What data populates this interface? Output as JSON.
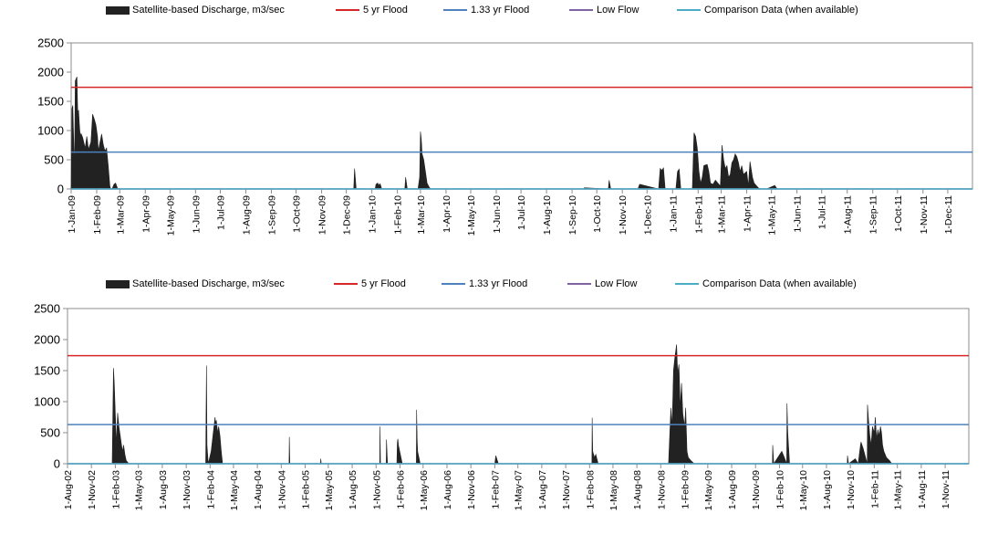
{
  "chart_data": [
    {
      "type": "area",
      "title": "",
      "xlabel": "",
      "ylabel": "",
      "ylim": [
        0,
        2500
      ],
      "yticks": [
        "0",
        "500",
        "1000",
        "1500",
        "2000",
        "2500"
      ],
      "x_range": [
        "2009-01-01",
        "2011-12-31"
      ],
      "x_tick_labels": [
        "1-Jan-09",
        "1-Feb-09",
        "1-Mar-09",
        "1-Apr-09",
        "1-May-09",
        "1-Jun-09",
        "1-Jul-09",
        "1-Aug-09",
        "1-Sep-09",
        "1-Oct-09",
        "1-Nov-09",
        "1-Dec-09",
        "1-Jan-10",
        "1-Feb-10",
        "1-Mar-10",
        "1-Apr-10",
        "1-May-10",
        "1-Jun-10",
        "1-Jul-10",
        "1-Aug-10",
        "1-Sep-10",
        "1-Oct-10",
        "1-Nov-10",
        "1-Dec-10",
        "1-Jan-11",
        "1-Feb-11",
        "1-Mar-11",
        "1-Apr-11",
        "1-May-11",
        "1-Jun-11",
        "1-Jul-11",
        "1-Aug-11",
        "1-Sep-11",
        "1-Oct-11",
        "1-Nov-11",
        "1-Dec-11"
      ],
      "legend": {
        "placement": "top",
        "entries": [
          {
            "label": "Satellite-based Discharge, m3/sec",
            "color": "#222222",
            "kind": "area"
          },
          {
            "label": "5 yr Flood",
            "color": "#d62728",
            "kind": "line"
          },
          {
            "label": "1.33 yr Flood",
            "color": "#4f81bd",
            "kind": "line"
          },
          {
            "label": "Low Flow",
            "color": "#8064a2",
            "kind": "line"
          },
          {
            "label": "Comparison Data (when available)",
            "color": "#4bacc6",
            "kind": "line"
          }
        ]
      },
      "reference_lines": {
        "five_yr_flood": 1740,
        "one_33_yr_flood": 630,
        "low_flow": 0
      },
      "series": [
        {
          "name": "Satellite-based Discharge, m3/sec",
          "x": [
            "2009-01-01",
            "2009-01-02",
            "2009-01-03",
            "2009-01-05",
            "2009-01-06",
            "2009-01-08",
            "2009-01-09",
            "2009-01-10",
            "2009-01-11",
            "2009-01-12",
            "2009-01-13",
            "2009-01-15",
            "2009-01-18",
            "2009-01-20",
            "2009-01-22",
            "2009-01-25",
            "2009-01-27",
            "2009-01-29",
            "2009-01-31",
            "2009-02-02",
            "2009-02-03",
            "2009-02-05",
            "2009-02-07",
            "2009-02-09",
            "2009-02-11",
            "2009-02-13",
            "2009-02-15",
            "2009-02-17",
            "2009-02-18",
            "2009-02-20",
            "2009-02-22",
            "2009-02-24",
            "2009-02-26",
            "2009-02-27",
            "2009-03-01",
            "2009-03-05",
            "2009-03-08",
            "2009-03-10",
            "2009-03-13",
            "2009-03-20",
            "2009-12-10",
            "2009-12-11",
            "2009-12-13",
            "2010-01-05",
            "2010-01-06",
            "2010-01-08",
            "2010-01-10",
            "2010-01-11",
            "2010-01-13",
            "2010-02-10",
            "2010-02-11",
            "2010-02-13",
            "2010-02-26",
            "2010-02-28",
            "2010-03-01",
            "2010-03-02",
            "2010-03-03",
            "2010-03-05",
            "2010-03-07",
            "2010-03-09",
            "2010-03-12",
            "2010-03-14",
            "2010-09-15",
            "2010-09-16",
            "2010-10-15",
            "2010-10-16",
            "2010-10-18",
            "2010-11-20",
            "2010-11-22",
            "2010-12-15",
            "2010-12-17",
            "2010-12-19",
            "2010-12-21",
            "2010-12-23",
            "2011-01-05",
            "2011-01-07",
            "2011-01-09",
            "2011-01-11",
            "2011-01-25",
            "2011-01-27",
            "2011-01-29",
            "2011-01-31",
            "2011-02-02",
            "2011-02-04",
            "2011-02-06",
            "2011-02-08",
            "2011-02-12",
            "2011-02-14",
            "2011-02-16",
            "2011-02-19",
            "2011-02-22",
            "2011-02-25",
            "2011-02-28",
            "2011-03-02",
            "2011-03-04",
            "2011-03-06",
            "2011-03-08",
            "2011-03-10",
            "2011-03-12",
            "2011-03-14",
            "2011-03-16",
            "2011-03-18",
            "2011-03-20",
            "2011-03-22",
            "2011-03-24",
            "2011-03-26",
            "2011-03-28",
            "2011-04-01",
            "2011-04-03",
            "2011-04-05",
            "2011-04-08",
            "2011-04-10",
            "2011-04-15",
            "2011-04-18",
            "2011-04-25",
            "2011-05-05",
            "2011-05-08",
            "2011-05-15",
            "2011-12-31"
          ],
          "values": [
            0,
            1380,
            1430,
            300,
            1850,
            1920,
            1300,
            1350,
            1100,
            900,
            950,
            880,
            700,
            900,
            680,
            800,
            1280,
            1200,
            1100,
            900,
            650,
            800,
            940,
            760,
            650,
            700,
            400,
            50,
            0,
            10,
            80,
            100,
            20,
            0,
            0,
            0,
            0,
            0,
            0,
            0,
            0,
            350,
            0,
            0,
            80,
            100,
            60,
            90,
            0,
            0,
            200,
            0,
            0,
            200,
            980,
            850,
            600,
            500,
            300,
            100,
            20,
            0,
            0,
            20,
            0,
            150,
            0,
            0,
            80,
            0,
            350,
            320,
            360,
            0,
            0,
            300,
            340,
            0,
            0,
            960,
            900,
            700,
            300,
            100,
            200,
            400,
            420,
            300,
            100,
            80,
            150,
            100,
            50,
            750,
            500,
            350,
            400,
            200,
            250,
            450,
            500,
            600,
            550,
            450,
            300,
            400,
            250,
            300,
            50,
            470,
            200,
            100,
            20,
            0,
            0,
            60,
            0,
            0,
            0
          ]
        }
      ]
    },
    {
      "type": "area",
      "title": "",
      "xlabel": "",
      "ylabel": "",
      "ylim": [
        0,
        2500
      ],
      "yticks": [
        "0",
        "500",
        "1000",
        "1500",
        "2000",
        "2500"
      ],
      "x_range": [
        "2002-08-01",
        "2012-01-31"
      ],
      "x_tick_labels": [
        "1-Aug-02",
        "1-Nov-02",
        "1-Feb-03",
        "1-May-03",
        "1-Aug-03",
        "1-Nov-03",
        "1-Feb-04",
        "1-May-04",
        "1-Aug-04",
        "1-Nov-04",
        "1-Feb-05",
        "1-May-05",
        "1-Aug-05",
        "1-Nov-05",
        "1-Feb-06",
        "1-May-06",
        "1-Aug-06",
        "1-Nov-06",
        "1-Feb-07",
        "1-May-07",
        "1-Aug-07",
        "1-Nov-07",
        "1-Feb-08",
        "1-May-08",
        "1-Aug-08",
        "1-Nov-08",
        "1-Feb-09",
        "1-May-09",
        "1-Aug-09",
        "1-Nov-09",
        "1-Feb-10",
        "1-May-10",
        "1-Aug-10",
        "1-Nov-10",
        "1-Feb-11",
        "1-May-11",
        "1-Aug-11",
        "1-Nov-11"
      ],
      "legend": {
        "placement": "top",
        "entries": [
          {
            "label": "Satellite-based Discharge, m3/sec",
            "color": "#222222",
            "kind": "area"
          },
          {
            "label": "5 yr Flood",
            "color": "#d62728",
            "kind": "line"
          },
          {
            "label": "1.33 yr Flood",
            "color": "#4f81bd",
            "kind": "line"
          },
          {
            "label": "Low Flow",
            "color": "#8064a2",
            "kind": "line"
          },
          {
            "label": "Comparison Data (when available)",
            "color": "#4bacc6",
            "kind": "line"
          }
        ]
      },
      "reference_lines": {
        "five_yr_flood": 1740,
        "one_33_yr_flood": 630,
        "low_flow": 0
      },
      "series": [
        {
          "name": "Satellite-based Discharge, m3/sec",
          "x": [
            "2003-01-20",
            "2003-01-25",
            "2003-01-28",
            "2003-02-02",
            "2003-02-05",
            "2003-02-10",
            "2003-02-15",
            "2003-02-20",
            "2003-02-25",
            "2003-03-01",
            "2003-03-05",
            "2003-03-10",
            "2003-03-15",
            "2003-03-25",
            "2004-01-15",
            "2004-01-18",
            "2004-01-20",
            "2004-01-25",
            "2004-02-05",
            "2004-02-20",
            "2004-02-22",
            "2004-02-25",
            "2004-03-01",
            "2004-03-05",
            "2004-03-10",
            "2004-03-15",
            "2004-03-20",
            "2004-12-01",
            "2004-12-02",
            "2004-12-04",
            "2005-04-01",
            "2005-04-02",
            "2005-04-04",
            "2005-11-15",
            "2005-11-16",
            "2005-11-18",
            "2005-12-10",
            "2005-12-11",
            "2005-12-15",
            "2006-01-20",
            "2006-01-22",
            "2006-01-24",
            "2006-01-26",
            "2006-02-10",
            "2006-04-05",
            "2006-04-06",
            "2006-04-08",
            "2006-04-10",
            "2006-04-20",
            "2007-02-01",
            "2007-02-05",
            "2007-02-15",
            "2008-02-10",
            "2008-02-11",
            "2008-02-13",
            "2008-02-20",
            "2008-02-25",
            "2008-03-05",
            "2008-12-01",
            "2008-12-10",
            "2008-12-15",
            "2008-12-20",
            "2008-12-25",
            "2009-01-01",
            "2009-01-05",
            "2009-01-10",
            "2009-01-15",
            "2009-01-20",
            "2009-01-25",
            "2009-02-01",
            "2009-02-05",
            "2009-02-10",
            "2009-02-15",
            "2009-02-25",
            "2009-03-10",
            "2010-01-05",
            "2010-01-06",
            "2010-01-10",
            "2010-02-10",
            "2010-02-20",
            "2010-03-01",
            "2010-03-02",
            "2010-03-05",
            "2010-03-12",
            "2010-10-20",
            "2010-10-21",
            "2010-10-25",
            "2010-11-20",
            "2010-12-01",
            "2010-12-10",
            "2010-12-12",
            "2010-12-20",
            "2011-01-05",
            "2011-01-06",
            "2011-01-10",
            "2011-01-15",
            "2011-01-20",
            "2011-01-25",
            "2011-02-01",
            "2011-02-05",
            "2011-02-10",
            "2011-02-15",
            "2011-02-20",
            "2011-02-25",
            "2011-03-01",
            "2011-03-05",
            "2011-03-10",
            "2011-03-20",
            "2011-04-01",
            "2011-04-10",
            "2011-04-20",
            "2011-05-01"
          ],
          "values": [
            0,
            1540,
            1300,
            700,
            300,
            820,
            600,
            450,
            300,
            200,
            300,
            150,
            50,
            0,
            0,
            1580,
            300,
            0,
            200,
            750,
            650,
            700,
            500,
            600,
            450,
            200,
            0,
            0,
            430,
            0,
            0,
            80,
            0,
            0,
            600,
            0,
            0,
            390,
            0,
            0,
            350,
            400,
            300,
            0,
            0,
            870,
            400,
            200,
            0,
            0,
            130,
            0,
            0,
            740,
            200,
            100,
            150,
            0,
            0,
            900,
            600,
            1500,
            1700,
            1920,
            1450,
            1600,
            900,
            1300,
            800,
            600,
            900,
            200,
            100,
            50,
            0,
            0,
            300,
            0,
            200,
            100,
            0,
            970,
            500,
            0,
            0,
            130,
            0,
            80,
            0,
            300,
            350,
            250,
            0,
            950,
            700,
            450,
            300,
            600,
            500,
            750,
            400,
            550,
            450,
            600,
            500,
            300,
            200,
            100,
            50,
            0,
            0,
            0
          ]
        }
      ]
    }
  ]
}
